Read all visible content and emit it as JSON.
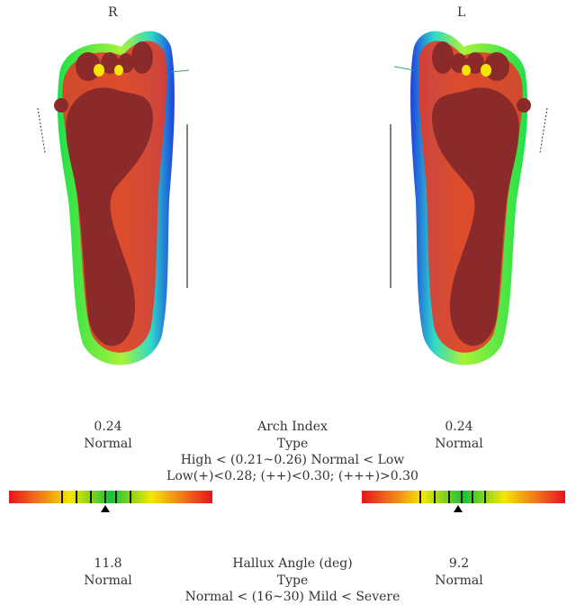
{
  "feet": {
    "right_label": "R",
    "left_label": "L"
  },
  "arch": {
    "title": "Arch Index",
    "type_label": "Type",
    "criteria_1": "High < (0.21~0.26) Normal < Low",
    "criteria_2": "Low(+)<0.28; (++)<0.30; (+++)>0.30",
    "right_value": "0.24",
    "right_type": "Normal",
    "left_value": "0.24",
    "left_type": "Normal",
    "right_index": 0.24,
    "left_index": 0.24
  },
  "hallux": {
    "title": "Hallux Angle (deg)",
    "type_label": "Type",
    "criteria": "Normal < (16~30) Mild < Severe",
    "right_value": "11.8",
    "right_type": "Normal",
    "left_value": "9.2",
    "left_type": "Normal"
  },
  "colors": {
    "pressure_high": "#8b2a2a",
    "scale_red": "#e8141e",
    "scale_yellow": "#f5e600",
    "scale_green": "#19c23a"
  }
}
